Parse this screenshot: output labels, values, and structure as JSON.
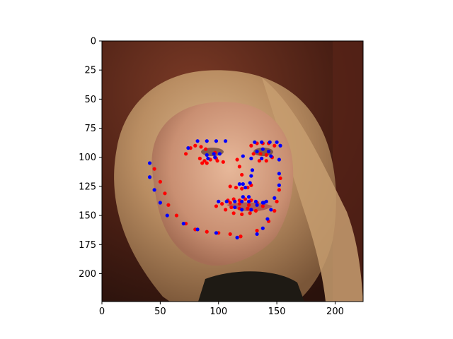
{
  "chart_data": {
    "type": "scatter",
    "title": "",
    "xlabel": "",
    "ylabel": "",
    "xlim": [
      0,
      224
    ],
    "ylim": [
      224,
      0
    ],
    "y_inverted": true,
    "grid": false,
    "legend": "none",
    "background": "photograph of a woman's face (image, 224x224)",
    "x_ticks": [
      0,
      50,
      100,
      150,
      200
    ],
    "y_ticks": [
      0,
      25,
      50,
      75,
      100,
      125,
      150,
      175,
      200
    ],
    "series": [
      {
        "color": "#ff0000",
        "points": [
          [
            45,
            110
          ],
          [
            50,
            121
          ],
          [
            54,
            131
          ],
          [
            57,
            141
          ],
          [
            64,
            150
          ],
          [
            72,
            157
          ],
          [
            80,
            162
          ],
          [
            90,
            164
          ],
          [
            100,
            165
          ],
          [
            110,
            166
          ],
          [
            119,
            168
          ],
          [
            133,
            163
          ],
          [
            143,
            155
          ],
          [
            148,
            146
          ],
          [
            150,
            138
          ],
          [
            152,
            128
          ],
          [
            153,
            118
          ],
          [
            72,
            97
          ],
          [
            76,
            92
          ],
          [
            80,
            90
          ],
          [
            85,
            91
          ],
          [
            89,
            93
          ],
          [
            128,
            90
          ],
          [
            133,
            88
          ],
          [
            138,
            88
          ],
          [
            143,
            88
          ],
          [
            148,
            90
          ],
          [
            97,
            96
          ],
          [
            98,
            101
          ],
          [
            104,
            104
          ],
          [
            84,
            101
          ],
          [
            88,
            103
          ],
          [
            93,
            102
          ],
          [
            97,
            100
          ],
          [
            99,
            103
          ],
          [
            90,
            105
          ],
          [
            86,
            105
          ],
          [
            130,
            97
          ],
          [
            136,
            97
          ],
          [
            141,
            98
          ],
          [
            146,
            100
          ],
          [
            141,
            103
          ],
          [
            135,
            103
          ],
          [
            116,
            102
          ],
          [
            118,
            108
          ],
          [
            120,
            115
          ],
          [
            110,
            125
          ],
          [
            115,
            126
          ],
          [
            120,
            127
          ],
          [
            125,
            126
          ],
          [
            128,
            124
          ],
          [
            98,
            142
          ],
          [
            103,
            140
          ],
          [
            108,
            137
          ],
          [
            113,
            136
          ],
          [
            118,
            137
          ],
          [
            123,
            136
          ],
          [
            128,
            137
          ],
          [
            133,
            139
          ],
          [
            138,
            142
          ],
          [
            132,
            146
          ],
          [
            127,
            148
          ],
          [
            120,
            149
          ],
          [
            113,
            148
          ],
          [
            106,
            145
          ],
          [
            110,
            139
          ],
          [
            118,
            140
          ],
          [
            126,
            141
          ],
          [
            125,
            144
          ],
          [
            118,
            144
          ],
          [
            111,
            143
          ]
        ]
      },
      {
        "color": "#0000ff",
        "points": [
          [
            41,
            105
          ],
          [
            41,
            117
          ],
          [
            45,
            128
          ],
          [
            50,
            139
          ],
          [
            56,
            150
          ],
          [
            70,
            157
          ],
          [
            82,
            162
          ],
          [
            98,
            165
          ],
          [
            116,
            169
          ],
          [
            133,
            166
          ],
          [
            138,
            161
          ],
          [
            142,
            153
          ],
          [
            145,
            145
          ],
          [
            148,
            135
          ],
          [
            152,
            124
          ],
          [
            152,
            114
          ],
          [
            152,
            102
          ],
          [
            74,
            92
          ],
          [
            82,
            86
          ],
          [
            90,
            86
          ],
          [
            98,
            86
          ],
          [
            106,
            86
          ],
          [
            131,
            87
          ],
          [
            137,
            87
          ],
          [
            144,
            87
          ],
          [
            150,
            87
          ],
          [
            153,
            90
          ],
          [
            90,
            98
          ],
          [
            96,
            97
          ],
          [
            101,
            97
          ],
          [
            91,
            101
          ],
          [
            97,
            100
          ],
          [
            133,
            95
          ],
          [
            138,
            93
          ],
          [
            143,
            95
          ],
          [
            145,
            99
          ],
          [
            137,
            101
          ],
          [
            121,
            99
          ],
          [
            128,
            101
          ],
          [
            129,
            111
          ],
          [
            128,
            116
          ],
          [
            127,
            122
          ],
          [
            118,
            123
          ],
          [
            121,
            123
          ],
          [
            123,
            126
          ],
          [
            100,
            138
          ],
          [
            107,
            138
          ],
          [
            114,
            138
          ],
          [
            120,
            138
          ],
          [
            126,
            138
          ],
          [
            132,
            138
          ],
          [
            138,
            139
          ],
          [
            141,
            138
          ],
          [
            114,
            143
          ],
          [
            120,
            145
          ],
          [
            128,
            145
          ],
          [
            133,
            141
          ],
          [
            139,
            139
          ],
          [
            121,
            134
          ],
          [
            126,
            134
          ]
        ]
      }
    ]
  }
}
